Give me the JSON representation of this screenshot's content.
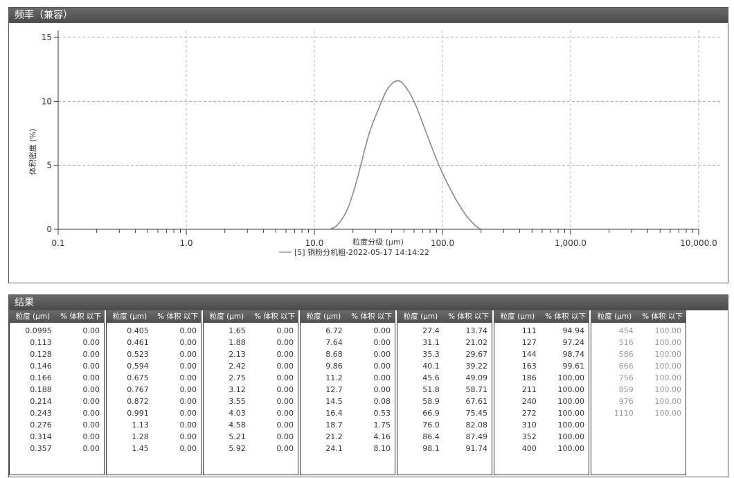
{
  "chart_section_title": "频率（兼容）",
  "results_section_title": "结果",
  "table_headers": {
    "size": "粒度 (µm)",
    "volume": "% 体积 以下"
  },
  "chart_data": {
    "type": "line",
    "xlabel": "粒度分级 (µm)",
    "ylabel": "体积密度 (%)",
    "x_scale": "log",
    "xlim": [
      0.1,
      10000
    ],
    "ylim": [
      0,
      15
    ],
    "x_ticks": [
      "0.1",
      "1.0",
      "10.0",
      "100.0",
      "1,000.0",
      "10,000.0"
    ],
    "y_ticks": [
      "0",
      "5",
      "10",
      "15"
    ],
    "grid": true,
    "legend_position": "bottom",
    "series": [
      {
        "name": "[5] 铜粉分机粗-2022-05-17 14:14:22",
        "color": "#888888",
        "x": [
          13,
          15,
          18,
          21,
          23,
          27,
          33.5,
          38,
          44,
          50,
          60,
          75,
          94,
          120,
          150,
          180,
          200
        ],
        "y": [
          0,
          0.3,
          1.5,
          3.5,
          5,
          7.6,
          10,
          11.1,
          11.6,
          11.3,
          10,
          7.5,
          5,
          2.8,
          1.2,
          0.3,
          0
        ]
      }
    ]
  },
  "results": [
    {
      "rows": [
        [
          "0.0995",
          "0.00"
        ],
        [
          "0.113",
          "0.00"
        ],
        [
          "0.128",
          "0.00"
        ],
        [
          "0.146",
          "0.00"
        ],
        [
          "0.166",
          "0.00"
        ],
        [
          "0.188",
          "0.00"
        ],
        [
          "0.214",
          "0.00"
        ],
        [
          "0.243",
          "0.00"
        ],
        [
          "0.276",
          "0.00"
        ],
        [
          "0.314",
          "0.00"
        ],
        [
          "0.357",
          "0.00"
        ]
      ]
    },
    {
      "rows": [
        [
          "0.405",
          "0.00"
        ],
        [
          "0.461",
          "0.00"
        ],
        [
          "0.523",
          "0.00"
        ],
        [
          "0.594",
          "0.00"
        ],
        [
          "0.675",
          "0.00"
        ],
        [
          "0.767",
          "0.00"
        ],
        [
          "0.872",
          "0.00"
        ],
        [
          "0.991",
          "0.00"
        ],
        [
          "1.13",
          "0.00"
        ],
        [
          "1.28",
          "0.00"
        ],
        [
          "1.45",
          "0.00"
        ]
      ]
    },
    {
      "rows": [
        [
          "1.65",
          "0.00"
        ],
        [
          "1.88",
          "0.00"
        ],
        [
          "2.13",
          "0.00"
        ],
        [
          "2.42",
          "0.00"
        ],
        [
          "2.75",
          "0.00"
        ],
        [
          "3.12",
          "0.00"
        ],
        [
          "3.55",
          "0.00"
        ],
        [
          "4.03",
          "0.00"
        ],
        [
          "4.58",
          "0.00"
        ],
        [
          "5.21",
          "0.00"
        ],
        [
          "5.92",
          "0.00"
        ]
      ]
    },
    {
      "rows": [
        [
          "6.72",
          "0.00"
        ],
        [
          "7.64",
          "0.00"
        ],
        [
          "8.68",
          "0.00"
        ],
        [
          "9.86",
          "0.00"
        ],
        [
          "11.2",
          "0.00"
        ],
        [
          "12.7",
          "0.00"
        ],
        [
          "14.5",
          "0.08"
        ],
        [
          "16.4",
          "0.53"
        ],
        [
          "18.7",
          "1.75"
        ],
        [
          "21.2",
          "4.16"
        ],
        [
          "24.1",
          "8.10"
        ]
      ]
    },
    {
      "rows": [
        [
          "27.4",
          "13.74"
        ],
        [
          "31.1",
          "21.02"
        ],
        [
          "35.3",
          "29.67"
        ],
        [
          "40.1",
          "39.22"
        ],
        [
          "45.6",
          "49.09"
        ],
        [
          "51.8",
          "58.71"
        ],
        [
          "58.9",
          "67.61"
        ],
        [
          "66.9",
          "75.45"
        ],
        [
          "76.0",
          "82.08"
        ],
        [
          "86.4",
          "87.49"
        ],
        [
          "98.1",
          "91.74"
        ]
      ]
    },
    {
      "rows": [
        [
          "111",
          "94.94"
        ],
        [
          "127",
          "97.24"
        ],
        [
          "144",
          "98.74"
        ],
        [
          "163",
          "99.61"
        ],
        [
          "186",
          "100.00"
        ],
        [
          "211",
          "100.00"
        ],
        [
          "240",
          "100.00"
        ],
        [
          "272",
          "100.00"
        ],
        [
          "310",
          "100.00"
        ],
        [
          "352",
          "100.00"
        ],
        [
          "400",
          "100.00"
        ]
      ]
    },
    {
      "rows": [
        [
          "454",
          "100.00"
        ],
        [
          "516",
          "100.00"
        ],
        [
          "586",
          "100.00"
        ],
        [
          "666",
          "100.00"
        ],
        [
          "756",
          "100.00"
        ],
        [
          "859",
          "100.00"
        ],
        [
          "976",
          "100.00"
        ],
        [
          "1110",
          "100.00"
        ]
      ]
    }
  ]
}
